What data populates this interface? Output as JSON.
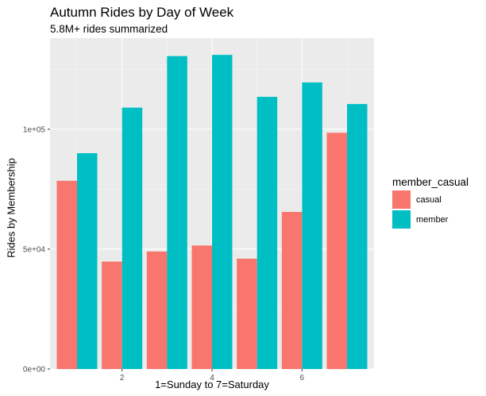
{
  "chart_data": {
    "type": "bar",
    "title": "Autumn Rides by Day of Week",
    "subtitle": "5.8M+ rides summarized",
    "xlabel": "1=Sunday to 7=Saturday",
    "ylabel": "Rides by Membership",
    "categories": [
      1,
      2,
      3,
      4,
      5,
      6,
      7
    ],
    "x_tick_labels": [
      "2",
      "4",
      "6"
    ],
    "x_tick_values": [
      2,
      4,
      6
    ],
    "y_tick_labels": [
      "0e+00",
      "5e+04",
      "1e+05"
    ],
    "y_tick_values": [
      0,
      50000,
      100000
    ],
    "ylim": [
      0,
      138000
    ],
    "xlim": [
      0.4,
      7.6
    ],
    "grid": true,
    "legend_title": "member_casual",
    "legend_position": "right",
    "series": [
      {
        "name": "casual",
        "color": "#F8766D",
        "values": [
          78500,
          44800,
          49000,
          51500,
          46000,
          65500,
          98500
        ]
      },
      {
        "name": "member",
        "color": "#00BFC4",
        "values": [
          90000,
          109000,
          130500,
          131000,
          113500,
          119500,
          110500
        ]
      }
    ]
  }
}
